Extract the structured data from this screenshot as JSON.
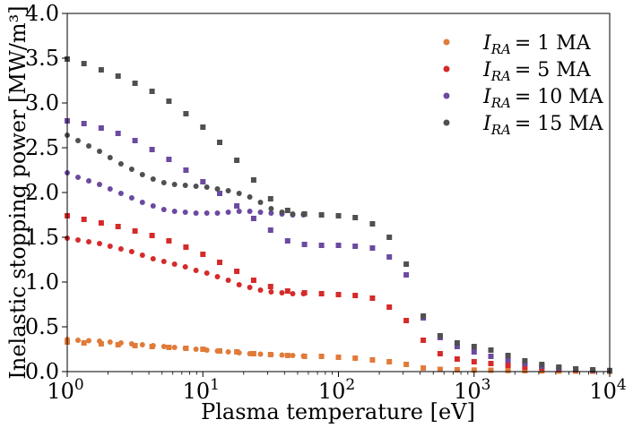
{
  "chart_data": {
    "type": "scatter",
    "xlabel": "Plasma temperature [eV]",
    "ylabel": "Inelastic stopping power [MW/m³]",
    "xscale": "log",
    "xlim": [
      1,
      10000
    ],
    "ylim": [
      0,
      4.0
    ],
    "xticks": [
      {
        "value": 1,
        "base": "10",
        "exp": "0"
      },
      {
        "value": 10,
        "base": "10",
        "exp": "1"
      },
      {
        "value": 100,
        "base": "10",
        "exp": "2"
      },
      {
        "value": 1000,
        "base": "10",
        "exp": "3"
      },
      {
        "value": 10000,
        "base": "10",
        "exp": "4"
      }
    ],
    "yticks": [
      0.0,
      0.5,
      1.0,
      1.5,
      2.0,
      2.5,
      3.0,
      3.5,
      4.0
    ],
    "yticklabels": [
      "0.0",
      "0.5",
      "1.0",
      "1.5",
      "2.0",
      "2.5",
      "3.0",
      "3.5",
      "4.0"
    ],
    "legend_position": "top-right",
    "marker_note": "circles and squares share the same series colour",
    "series": [
      {
        "legend_var": "I",
        "legend_sub": "RA",
        "legend_eq": "= 1 MA",
        "color": "#e07b39",
        "circles": {
          "x": [
            1.0,
            1.2,
            1.44,
            1.73,
            2.07,
            2.49,
            2.99,
            3.58,
            4.3,
            5.16,
            6.19,
            7.43,
            8.9,
            10.7,
            12.8,
            15.4,
            18.5,
            22.2,
            26.6,
            31.9,
            38.3,
            46.0,
            55.2
          ],
          "y": [
            0.36,
            0.35,
            0.345,
            0.34,
            0.33,
            0.32,
            0.31,
            0.3,
            0.29,
            0.28,
            0.27,
            0.26,
            0.25,
            0.24,
            0.23,
            0.22,
            0.21,
            0.2,
            0.195,
            0.19,
            0.185,
            0.18,
            0.175
          ]
        },
        "squares": {
          "x": [
            1.0,
            1.33,
            1.78,
            2.37,
            3.16,
            4.22,
            5.62,
            7.5,
            10.0,
            13.3,
            17.8,
            23.7,
            31.6,
            42.2,
            56.2,
            75.0,
            100,
            133,
            178,
            237,
            316,
            422,
            562,
            750,
            1000,
            1330,
            1780,
            2370,
            3160,
            4220,
            5620,
            7500,
            10000
          ],
          "y": [
            0.33,
            0.32,
            0.31,
            0.3,
            0.29,
            0.28,
            0.27,
            0.26,
            0.25,
            0.23,
            0.22,
            0.2,
            0.19,
            0.18,
            0.17,
            0.17,
            0.16,
            0.15,
            0.13,
            0.11,
            0.08,
            0.04,
            0.025,
            0.02,
            0.017,
            0.015,
            0.012,
            0.01,
            0.008,
            0.006,
            0.005,
            0.004,
            0.003
          ]
        }
      },
      {
        "legend_var": "I",
        "legend_sub": "RA",
        "legend_eq": "= 5 MA",
        "color": "#d62a2a",
        "circles": {
          "x": [
            1.0,
            1.2,
            1.44,
            1.73,
            2.07,
            2.49,
            2.99,
            3.58,
            4.3,
            5.16,
            6.19,
            7.43,
            8.9,
            10.7,
            12.8,
            15.4,
            18.5,
            22.2,
            26.6,
            31.9,
            38.3,
            46.0,
            55.2
          ],
          "y": [
            1.49,
            1.47,
            1.45,
            1.43,
            1.4,
            1.37,
            1.34,
            1.3,
            1.26,
            1.23,
            1.2,
            1.17,
            1.13,
            1.1,
            1.06,
            1.02,
            0.97,
            0.94,
            0.91,
            0.89,
            0.88,
            0.87,
            0.87
          ]
        },
        "squares": {
          "x": [
            1.0,
            1.33,
            1.78,
            2.37,
            3.16,
            4.22,
            5.62,
            7.5,
            10.0,
            13.3,
            17.8,
            23.7,
            31.6,
            42.2,
            56.2,
            75.0,
            100,
            133,
            178,
            237,
            316,
            422,
            562,
            750,
            1000,
            1330,
            1780,
            2370,
            3160,
            4220,
            5620,
            7500,
            10000
          ],
          "y": [
            1.74,
            1.7,
            1.66,
            1.62,
            1.57,
            1.52,
            1.46,
            1.39,
            1.31,
            1.22,
            1.12,
            1.02,
            0.95,
            0.9,
            0.88,
            0.87,
            0.86,
            0.85,
            0.82,
            0.72,
            0.57,
            0.35,
            0.2,
            0.14,
            0.11,
            0.09,
            0.07,
            0.05,
            0.04,
            0.03,
            0.02,
            0.012,
            0.008
          ]
        }
      },
      {
        "legend_var": "I",
        "legend_sub": "RA",
        "legend_eq": "= 10 MA",
        "color": "#6b4aa0",
        "circles": {
          "x": [
            1.0,
            1.2,
            1.44,
            1.73,
            2.07,
            2.49,
            2.99,
            3.58,
            4.3,
            5.16,
            6.19,
            7.43,
            8.9,
            10.7,
            12.8,
            15.4,
            18.5,
            22.2,
            26.6,
            31.9,
            38.3,
            46.0,
            55.2
          ],
          "y": [
            2.22,
            2.17,
            2.13,
            2.09,
            2.04,
            1.99,
            1.94,
            1.89,
            1.85,
            1.81,
            1.79,
            1.78,
            1.77,
            1.77,
            1.77,
            1.78,
            1.79,
            1.79,
            1.78,
            1.77,
            1.76,
            1.75,
            1.75
          ]
        },
        "squares": {
          "x": [
            1.0,
            1.33,
            1.78,
            2.37,
            3.16,
            4.22,
            5.62,
            7.5,
            10.0,
            13.3,
            17.8,
            23.7,
            31.6,
            42.2,
            56.2,
            75.0,
            100,
            133,
            178,
            237,
            316,
            422,
            562,
            750,
            1000,
            1330,
            1780,
            2370,
            3160,
            4220,
            5620,
            7500,
            10000
          ],
          "y": [
            2.8,
            2.77,
            2.72,
            2.66,
            2.58,
            2.48,
            2.37,
            2.25,
            2.12,
            1.99,
            1.85,
            1.71,
            1.58,
            1.46,
            1.42,
            1.41,
            1.41,
            1.4,
            1.38,
            1.28,
            1.08,
            0.6,
            0.38,
            0.28,
            0.22,
            0.17,
            0.13,
            0.09,
            0.06,
            0.04,
            0.025,
            0.015,
            0.01
          ]
        }
      },
      {
        "legend_var": "I",
        "legend_sub": "RA",
        "legend_eq": "= 15 MA",
        "color": "#505050",
        "circles": {
          "x": [
            1.0,
            1.2,
            1.44,
            1.73,
            2.07,
            2.49,
            2.99,
            3.58,
            4.3,
            5.16,
            6.19,
            7.43,
            8.9,
            10.7,
            12.8,
            15.4,
            18.5,
            22.2,
            26.6,
            31.9,
            38.3,
            46.0,
            55.2
          ],
          "y": [
            2.64,
            2.58,
            2.52,
            2.46,
            2.39,
            2.32,
            2.26,
            2.2,
            2.15,
            2.11,
            2.09,
            2.08,
            2.07,
            2.06,
            2.04,
            2.02,
            1.99,
            1.95,
            1.89,
            1.82,
            1.78,
            1.76,
            1.76
          ]
        },
        "squares": {
          "x": [
            1.0,
            1.33,
            1.78,
            2.37,
            3.16,
            4.22,
            5.62,
            7.5,
            10.0,
            13.3,
            17.8,
            23.7,
            31.6,
            42.2,
            56.2,
            75.0,
            100,
            133,
            178,
            237,
            316,
            422,
            562,
            750,
            1000,
            1330,
            1780,
            2370,
            3160,
            4220,
            5620,
            7500,
            10000
          ],
          "y": [
            3.49,
            3.44,
            3.37,
            3.3,
            3.22,
            3.13,
            3.02,
            2.88,
            2.73,
            2.56,
            2.36,
            2.14,
            1.93,
            1.8,
            1.76,
            1.75,
            1.74,
            1.72,
            1.65,
            1.5,
            1.2,
            0.62,
            0.4,
            0.32,
            0.28,
            0.24,
            0.18,
            0.12,
            0.08,
            0.05,
            0.03,
            0.02,
            0.012
          ]
        }
      }
    ]
  }
}
